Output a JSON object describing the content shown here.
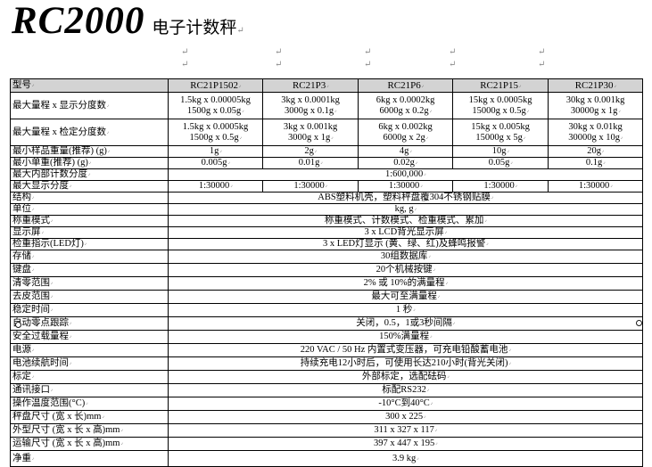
{
  "header": {
    "product": "RC2000",
    "subtitle": "电子计数秤"
  },
  "marks": {
    "pilcrow": "↵"
  },
  "colors": {
    "header_bg": "#d3d3d3",
    "border": "#000000",
    "mark_gray": "#8a8a8a"
  },
  "table": {
    "model_label": "型号",
    "columns": [
      "RC21P1502",
      "RC21P3",
      "RC21P6",
      "RC21P15",
      "RC21P30"
    ],
    "rows": [
      {
        "label": "最大量程 x 显示分度数",
        "cells": [
          "1.5kg x 0.00005kg\n1500g x 0.05g",
          "3kg x 0.0001kg\n3000g x 0.1g",
          "6kg x 0.0002kg\n6000g x 0.2g",
          "15kg x 0.0005kg\n15000g x 0.5g",
          "30kg x 0.001kg\n30000g x 1g"
        ]
      },
      {
        "label": "最大量程 x 检定分度数",
        "cells": [
          "1.5kg x 0.0005kg\n1500g x 0.5g",
          "3kg x 0.001kg\n3000g x 1g",
          "6kg x 0.002kg\n6000g x 2g",
          "15kg x 0.005kg\n15000g x 5g",
          "30kg x 0.01kg\n30000g x 10g"
        ]
      },
      {
        "label": "最小样品重量(推荐) (g)",
        "cells": [
          "1g",
          "2g",
          "4g",
          "10g",
          "20g"
        ]
      },
      {
        "label": "最小单重(推荐) (g)",
        "cells": [
          "0.005g",
          "0.01g",
          "0.02g",
          "0.05g",
          "0.1g"
        ]
      },
      {
        "label": "最大内部计数分度",
        "span": "1:600,000"
      },
      {
        "label": "最大显示分度",
        "cells": [
          "1:30000",
          "1:30000",
          "1:30000",
          "1:30000",
          "1:30000"
        ]
      },
      {
        "label": "结构",
        "span": "ABS塑料机壳，塑料秤盘覆304不锈钢贴膜"
      },
      {
        "label": "单位",
        "span": "kg, g"
      },
      {
        "label": "称重模式",
        "span": "称重模式、计数模式、检重模式、累加"
      },
      {
        "label": "显示屏",
        "span": "3 x LCD背光显示屏"
      },
      {
        "label": "检重指示(LED灯)",
        "span": "3 x LED灯显示 (黄、绿、红)及蜂鸣报警"
      },
      {
        "label": "存储",
        "span": "30组数据库"
      },
      {
        "label": "键盘",
        "span": "20个机械按键"
      },
      {
        "label": "清零范围",
        "span": "2% 或 10%的满量程"
      },
      {
        "label": "去皮范围",
        "span": "最大可至满量程"
      },
      {
        "label": "稳定时间",
        "span": "1 秒"
      },
      {
        "label": "自动零点跟踪",
        "span": "关闭，0.5，1或3秒间隔"
      },
      {
        "label": "安全过载量程",
        "span": "150%满量程"
      },
      {
        "label": "电源",
        "span": "220 VAC / 50 Hz 内置式变压器，可充电铅酸蓄电池"
      },
      {
        "label": "电池续航时间",
        "span": "持续充电12小时后，可使用长达210小时(背光关闭)"
      },
      {
        "label": "标定",
        "span": "外部标定，选配砝码"
      },
      {
        "label": "通讯接口",
        "span": "标配RS232"
      },
      {
        "label": "操作温度范围(°C)",
        "span": "-10°C到40°C"
      },
      {
        "label": "秤盘尺寸 (宽 x 长)mm",
        "span": "300 x 225"
      },
      {
        "label": "外型尺寸 (宽 x 长 x 高)mm",
        "span": "311 x 327 x 117"
      },
      {
        "label": "运输尺寸 (宽 x 长 x 高)mm",
        "span": "397 x 447 x 195"
      },
      {
        "label": "净重",
        "span": "3.9 kg"
      }
    ]
  }
}
